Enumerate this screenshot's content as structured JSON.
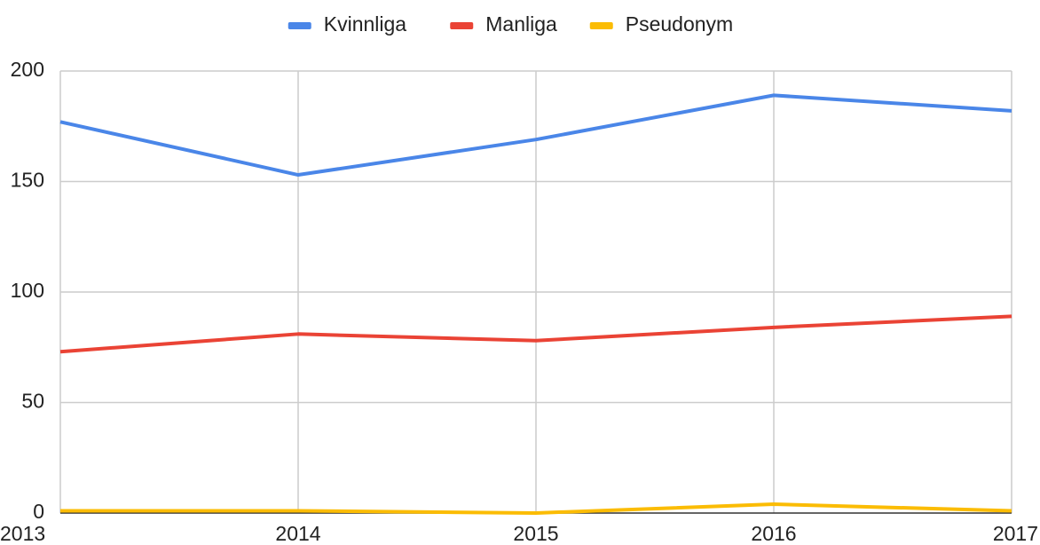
{
  "chart_data": {
    "type": "line",
    "categories": [
      "2013",
      "2014",
      "2015",
      "2016",
      "2017"
    ],
    "series": [
      {
        "name": "Kvinnliga",
        "color": "#4a86e8",
        "values": [
          177,
          153,
          169,
          189,
          182
        ]
      },
      {
        "name": "Manliga",
        "color": "#ea4335",
        "values": [
          73,
          81,
          78,
          84,
          89
        ]
      },
      {
        "name": "Pseudonym",
        "color": "#fbbc04",
        "values": [
          1,
          1,
          0,
          4,
          1
        ]
      }
    ],
    "ylim": [
      0,
      200
    ],
    "yticks": [
      0,
      50,
      100,
      150,
      200
    ],
    "grid": true,
    "legend": "top"
  }
}
